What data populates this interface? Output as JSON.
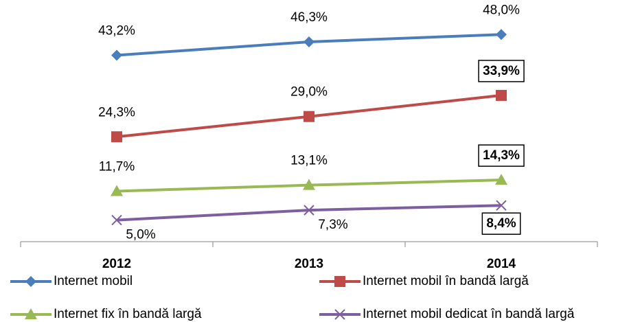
{
  "chart_data": {
    "type": "line",
    "categories": [
      "2012",
      "2013",
      "2014"
    ],
    "ylim": [
      0,
      56
    ],
    "series": [
      {
        "name": "Internet mobil",
        "color": "#4a7ebb",
        "marker": "diamond",
        "label_position": "above",
        "values": [
          43.2,
          46.3,
          48.0
        ],
        "value_labels": [
          "43,2%",
          "46,3%",
          "48,0%"
        ],
        "boxed_labels": [
          false,
          false,
          false
        ]
      },
      {
        "name": "Internet mobil în bandă largă",
        "color": "#be4b48",
        "marker": "square",
        "label_position": "above",
        "values": [
          24.3,
          29.0,
          33.9
        ],
        "value_labels": [
          "24,3%",
          "29,0%",
          "33,9%"
        ],
        "boxed_labels": [
          false,
          false,
          true
        ]
      },
      {
        "name": "Internet fix în bandă largă",
        "color": "#98b954",
        "marker": "triangle",
        "label_position": "above",
        "values": [
          11.7,
          13.1,
          14.3
        ],
        "value_labels": [
          "11,7%",
          "13,1%",
          "14,3%"
        ],
        "boxed_labels": [
          false,
          false,
          true
        ]
      },
      {
        "name": "Internet mobil dedicat în bandă largă",
        "color": "#7d5fa0",
        "marker": "x",
        "label_position": "below",
        "values": [
          5.0,
          7.3,
          8.4
        ],
        "value_labels": [
          "5,0%",
          "7,3%",
          "8,4%"
        ],
        "boxed_labels": [
          false,
          false,
          true
        ]
      }
    ]
  }
}
